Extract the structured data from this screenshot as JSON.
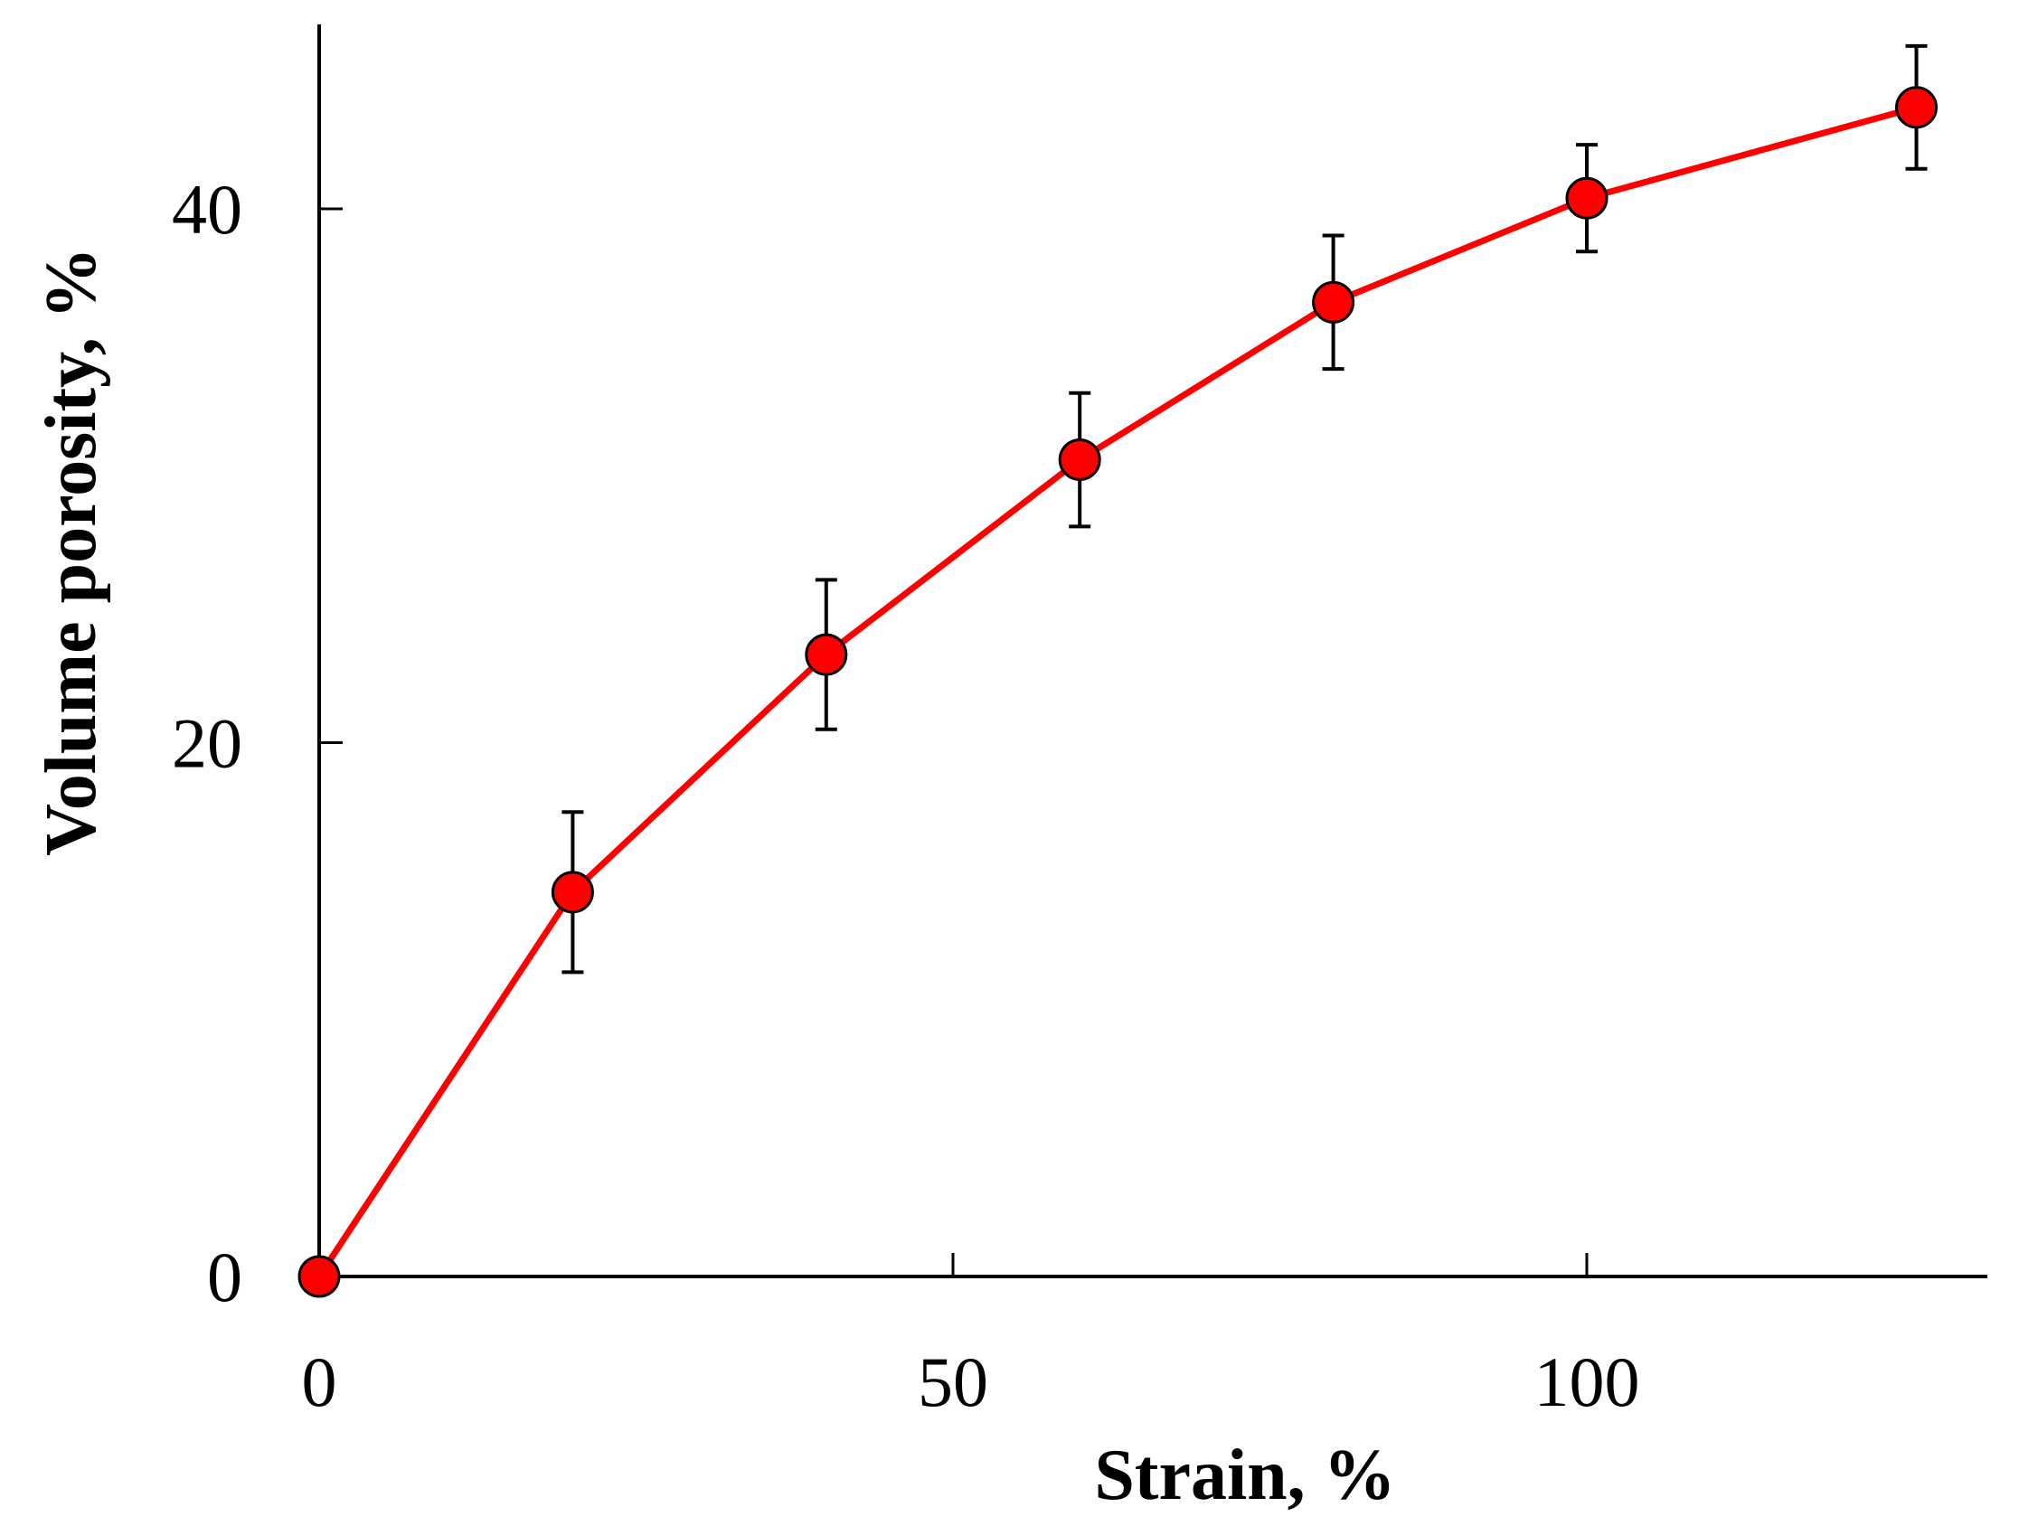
{
  "chart_data": {
    "type": "line",
    "title": "",
    "xlabel": "Strain, %",
    "ylabel": "Volume porosity, %",
    "xlim": [
      0,
      131
    ],
    "ylim": [
      0,
      47
    ],
    "x_ticks": [
      0,
      50,
      100
    ],
    "y_ticks": [
      0,
      20,
      40
    ],
    "x_tick_labels": [
      "0",
      "50",
      "100"
    ],
    "y_tick_labels": [
      "0",
      "20",
      "40"
    ],
    "grid": false,
    "legend": "none",
    "series": [
      {
        "color": "#ff0000",
        "marker": "circle",
        "marker_color": "#ff0000",
        "points": [
          {
            "x": 0,
            "y": 0,
            "err": 0
          },
          {
            "x": 20,
            "y": 14.4,
            "err": 3.0
          },
          {
            "x": 40,
            "y": 23.3,
            "err": 2.8
          },
          {
            "x": 60,
            "y": 30.6,
            "err": 2.5
          },
          {
            "x": 80,
            "y": 36.5,
            "err": 2.5
          },
          {
            "x": 100,
            "y": 40.4,
            "err": 2.0
          },
          {
            "x": 126,
            "y": 43.8,
            "err": 2.3
          }
        ]
      }
    ]
  }
}
